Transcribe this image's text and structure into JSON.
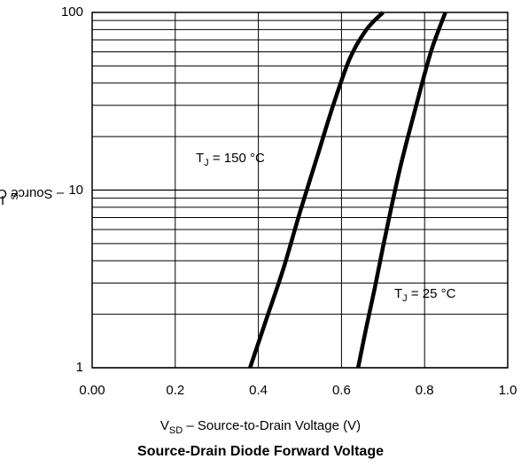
{
  "chart_data": {
    "type": "line",
    "title": "Source-Drain Diode Forward Voltage",
    "xlabel": {
      "sym": "V",
      "sub": "SD",
      "text": "– Source-to-Drain Voltage (V)"
    },
    "ylabel": {
      "sym": "I",
      "sub": "S",
      "text": "– Source Current (A)"
    },
    "xlim": [
      0.0,
      1.0
    ],
    "ylim": [
      1,
      100
    ],
    "y_scale": "log",
    "grid": true,
    "x_ticks": [
      "0.00",
      "0.2",
      "0.4",
      "0.6",
      "0.8",
      "1.0"
    ],
    "y_ticks": [
      "1",
      "10",
      "100"
    ],
    "series": [
      {
        "name": "TJ = 150 °C",
        "label_parts": {
          "sym": "T",
          "sub": "J",
          "text": "= 150 °C"
        },
        "x": [
          0.38,
          0.42,
          0.46,
          0.5,
          0.54,
          0.58,
          0.62,
          0.66,
          0.7
        ],
        "y": [
          1,
          1.9,
          3.6,
          7.5,
          15,
          30,
          55,
          80,
          100
        ]
      },
      {
        "name": "TJ = 25 °C",
        "label_parts": {
          "sym": "T",
          "sub": "J",
          "text": "= 25 °C"
        },
        "x": [
          0.64,
          0.66,
          0.68,
          0.7,
          0.72,
          0.74,
          0.76,
          0.78,
          0.8,
          0.82,
          0.85
        ],
        "y": [
          1,
          1.7,
          2.8,
          4.8,
          8.0,
          13,
          20,
          30,
          45,
          65,
          100
        ]
      }
    ]
  }
}
